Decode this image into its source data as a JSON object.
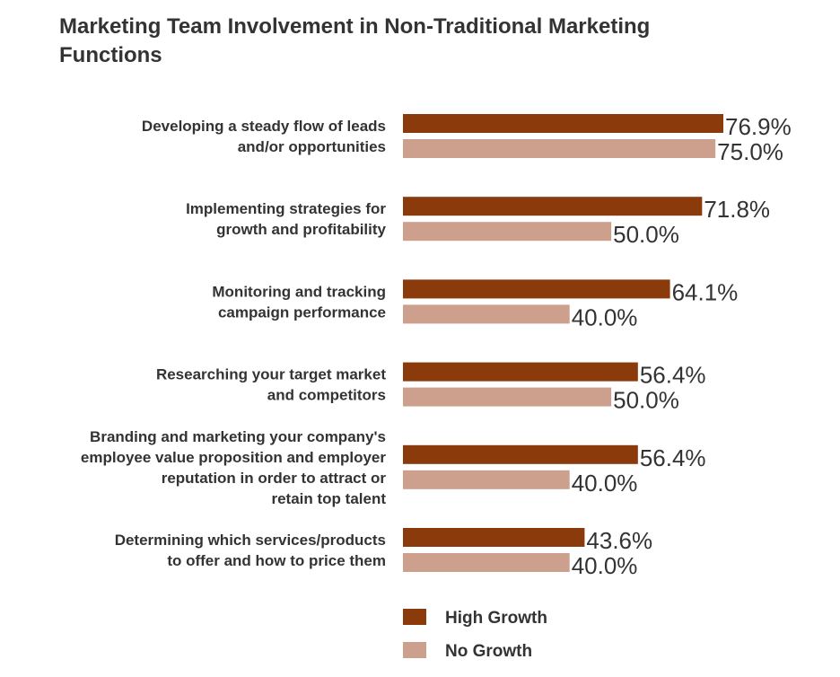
{
  "chart_data": {
    "type": "bar",
    "orientation": "horizontal",
    "title": "Marketing Team Involvement in Non-Traditional Marketing Functions",
    "categories": [
      [
        "Developing a steady flow of leads",
        "and/or opportunities"
      ],
      [
        "Implementing strategies for",
        "growth and profitability"
      ],
      [
        "Monitoring and tracking",
        "campaign performance"
      ],
      [
        "Researching your target market",
        "and competitors"
      ],
      [
        "Branding and marketing your company's",
        "employee value proposition and employer",
        "reputation in order to attract or",
        "retain top talent"
      ],
      [
        "Determining which services/products",
        "to offer and how to price them"
      ]
    ],
    "series": [
      {
        "name": "High Growth",
        "color": "#8b3a0b",
        "values": [
          76.9,
          71.8,
          64.1,
          56.4,
          56.4,
          43.6
        ],
        "labels": [
          "76.9%",
          "71.8%",
          "64.1%",
          "56.4%",
          "56.4%",
          "43.6%"
        ]
      },
      {
        "name": "No Growth",
        "color": "#cd9f8d",
        "values": [
          75.0,
          50.0,
          40.0,
          50.0,
          40.0,
          40.0
        ],
        "labels": [
          "75.0%",
          "50.0%",
          "40.0%",
          "50.0%",
          "40.0%",
          "40.0%"
        ]
      }
    ],
    "xlim": [
      0,
      100
    ],
    "grid": false,
    "legend_position": "bottom"
  }
}
